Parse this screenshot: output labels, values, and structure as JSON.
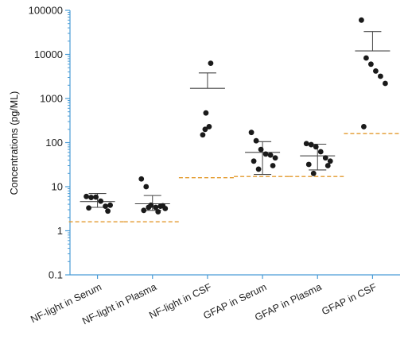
{
  "chart_data": {
    "type": "scatter",
    "ylabel": "Concentrations (pg/ML)",
    "xlabel": "",
    "yscale": "log",
    "ylim": [
      0.1,
      100000
    ],
    "yticks": [
      {
        "value": 0.1,
        "label": "0.1"
      },
      {
        "value": 1,
        "label": "1"
      },
      {
        "value": 10,
        "label": "10"
      },
      {
        "value": 100,
        "label": "100"
      },
      {
        "value": 1000,
        "label": "1000"
      },
      {
        "value": 10000,
        "label": "10000"
      },
      {
        "value": 100000,
        "label": "100000"
      }
    ],
    "categories": [
      "NF-light in Serum",
      "NF-light in Plasma",
      "NF-light in CSF",
      "GFAP in Serum",
      "GFAP in Plasma",
      "GFAP in CSF"
    ],
    "groups": [
      {
        "name": "NF-light in Serum",
        "points": [
          6.0,
          5.7,
          5.8,
          4.7,
          3.6,
          3.8,
          3.3,
          2.8
        ],
        "mean": 4.6,
        "sd_upper": 7.0,
        "sd_lower": 3.4,
        "threshold": 1.6
      },
      {
        "name": "NF-light in Plasma",
        "points": [
          15.0,
          10.0,
          3.8,
          3.4,
          3.6,
          3.2,
          2.9,
          3.7,
          3.4,
          2.7
        ],
        "mean": 4.1,
        "sd_upper": 6.3,
        "sd_lower": 2.9,
        "threshold": 1.6
      },
      {
        "name": "NF-light in CSF",
        "points": [
          6300,
          470,
          230,
          200,
          150
        ],
        "mean": 1700,
        "sd_upper": 3800,
        "sd_lower": null,
        "threshold": 16
      },
      {
        "name": "GFAP in Serum",
        "points": [
          170,
          110,
          70,
          55,
          52,
          45,
          38,
          30,
          25
        ],
        "mean": 60,
        "sd_upper": 105,
        "sd_lower": 19,
        "threshold": 17
      },
      {
        "name": "GFAP in Plasma",
        "points": [
          95,
          90,
          80,
          62,
          45,
          38,
          32,
          30,
          20
        ],
        "mean": 50,
        "sd_upper": 92,
        "sd_lower": 24,
        "threshold": 17
      },
      {
        "name": "GFAP in CSF",
        "points": [
          60000,
          8300,
          6000,
          4200,
          3200,
          2200,
          230
        ],
        "mean": 12000,
        "sd_upper": 33000,
        "sd_lower": null,
        "threshold": 160
      }
    ],
    "colors": {
      "axis": "#4a9cd6",
      "points": "#1a1a1a",
      "error_bars": "#444444",
      "threshold": "#e39a2d"
    },
    "grid": false,
    "legend": "none"
  }
}
